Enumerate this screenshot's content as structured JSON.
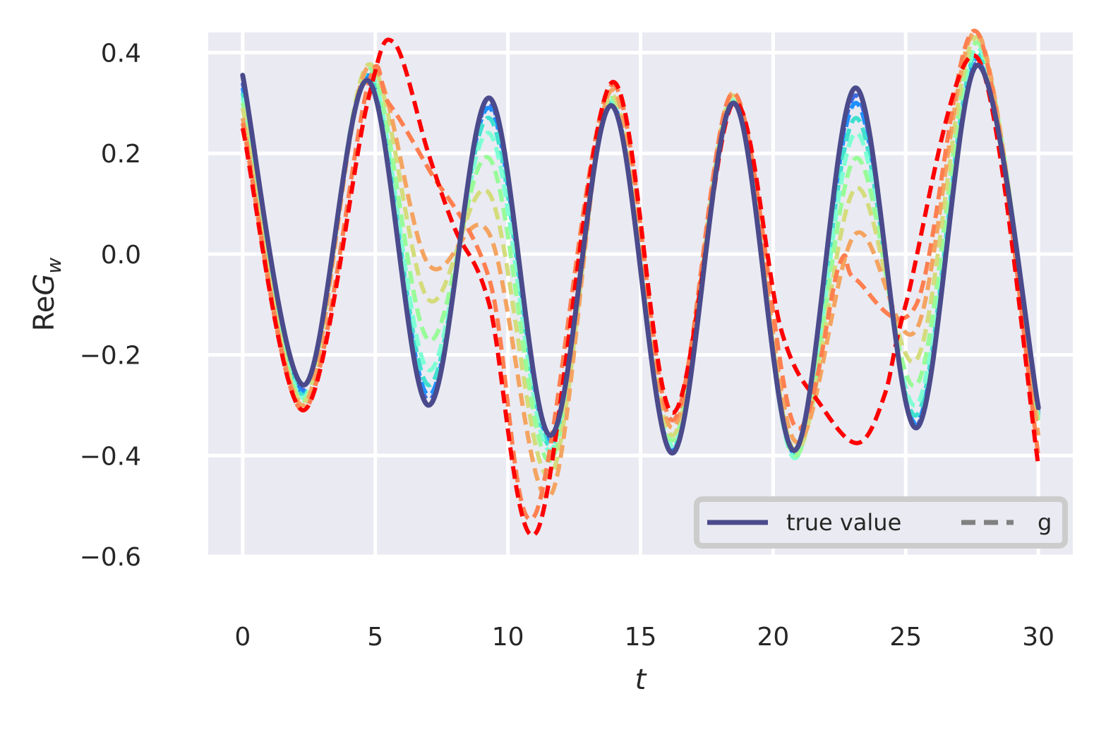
{
  "chart_data": {
    "type": "line",
    "xlabel": "t",
    "ylabel_prefix": "Re",
    "ylabel_symbol": "G",
    "ylabel_subscript": "w",
    "xlim": [
      -1.3,
      31.3
    ],
    "ylim": [
      -0.6,
      0.44
    ],
    "xticks": [
      0,
      5,
      10,
      15,
      20,
      25,
      30
    ],
    "yticks": [
      0.4,
      0.2,
      0.0,
      -0.2,
      -0.4,
      -0.6
    ],
    "xtick_labels": [
      "0",
      "5",
      "10",
      "15",
      "20",
      "25",
      "30"
    ],
    "ytick_labels": [
      "0.4",
      "0.2",
      "0.0",
      "−0.2",
      "−0.4",
      "−0.6"
    ],
    "grid": true,
    "background": "#eaeaf2",
    "grid_color": "#ffffff",
    "legend": {
      "placement": "lower-right",
      "columns": 2,
      "entries": [
        {
          "label": "true value",
          "style": "solid",
          "color": "#4a4a8c"
        },
        {
          "label": "g",
          "style": "dashed",
          "color": "#808080"
        }
      ]
    },
    "true_value": {
      "label": "true value",
      "color": "#4a4a8c",
      "points": [
        [
          0.0,
          0.355
        ],
        [
          2.3,
          -0.26
        ],
        [
          4.7,
          0.345
        ],
        [
          7.0,
          -0.3
        ],
        [
          9.3,
          0.31
        ],
        [
          11.6,
          -0.36
        ],
        [
          13.9,
          0.295
        ],
        [
          16.2,
          -0.395
        ],
        [
          18.5,
          0.3
        ],
        [
          20.8,
          -0.39
        ],
        [
          23.1,
          0.33
        ],
        [
          25.4,
          -0.345
        ],
        [
          27.7,
          0.375
        ],
        [
          30.0,
          -0.305
        ]
      ]
    },
    "dashed_series": [
      {
        "color": "#4169e1",
        "points": [
          [
            0.0,
            0.34
          ],
          [
            2.3,
            -0.27
          ],
          [
            4.7,
            0.35
          ],
          [
            7.0,
            -0.29
          ],
          [
            9.3,
            0.3
          ],
          [
            11.6,
            -0.36
          ],
          [
            13.9,
            0.295
          ],
          [
            16.2,
            -0.39
          ],
          [
            18.5,
            0.3
          ],
          [
            20.8,
            -0.39
          ],
          [
            23.1,
            0.315
          ],
          [
            25.4,
            -0.34
          ],
          [
            27.7,
            0.38
          ],
          [
            30.0,
            -0.31
          ]
        ]
      },
      {
        "color": "#1e90ff",
        "points": [
          [
            0.0,
            0.33
          ],
          [
            2.3,
            -0.275
          ],
          [
            4.7,
            0.355
          ],
          [
            7.0,
            -0.28
          ],
          [
            9.3,
            0.29
          ],
          [
            11.6,
            -0.37
          ],
          [
            13.9,
            0.3
          ],
          [
            16.2,
            -0.39
          ],
          [
            18.5,
            0.3
          ],
          [
            20.8,
            -0.395
          ],
          [
            23.1,
            0.3
          ],
          [
            25.4,
            -0.335
          ],
          [
            27.7,
            0.39
          ],
          [
            30.0,
            -0.315
          ]
        ]
      },
      {
        "color": "#40e0d0",
        "points": [
          [
            0.0,
            0.32
          ],
          [
            2.3,
            -0.28
          ],
          [
            4.7,
            0.36
          ],
          [
            7.0,
            -0.26
          ],
          [
            9.3,
            0.27
          ],
          [
            11.6,
            -0.38
          ],
          [
            13.9,
            0.3
          ],
          [
            16.2,
            -0.385
          ],
          [
            18.5,
            0.3
          ],
          [
            20.8,
            -0.4
          ],
          [
            23.1,
            0.27
          ],
          [
            25.4,
            -0.32
          ],
          [
            27.7,
            0.4
          ],
          [
            30.0,
            -0.32
          ]
        ]
      },
      {
        "color": "#7fffd4",
        "points": [
          [
            0.0,
            0.31
          ],
          [
            2.3,
            -0.285
          ],
          [
            4.7,
            0.365
          ],
          [
            7.0,
            -0.23
          ],
          [
            9.3,
            0.24
          ],
          [
            11.6,
            -0.39
          ],
          [
            13.9,
            0.305
          ],
          [
            16.2,
            -0.38
          ],
          [
            18.5,
            0.305
          ],
          [
            20.8,
            -0.405
          ],
          [
            23.1,
            0.24
          ],
          [
            25.4,
            -0.3
          ],
          [
            27.7,
            0.41
          ],
          [
            30.0,
            -0.325
          ]
        ]
      },
      {
        "color": "#98fb98",
        "points": [
          [
            0.0,
            0.3
          ],
          [
            2.3,
            -0.29
          ],
          [
            4.7,
            0.37
          ],
          [
            7.0,
            -0.17
          ],
          [
            9.3,
            0.19
          ],
          [
            11.6,
            -0.41
          ],
          [
            13.9,
            0.31
          ],
          [
            16.2,
            -0.37
          ],
          [
            18.5,
            0.31
          ],
          [
            20.8,
            -0.4
          ],
          [
            23.1,
            0.19
          ],
          [
            25.4,
            -0.26
          ],
          [
            27.7,
            0.42
          ],
          [
            30.0,
            -0.33
          ]
        ]
      },
      {
        "color": "#d4dc7c",
        "points": [
          [
            0.0,
            0.29
          ],
          [
            2.3,
            -0.295
          ],
          [
            4.7,
            0.375
          ],
          [
            7.0,
            -0.09
          ],
          [
            9.3,
            0.12
          ],
          [
            11.6,
            -0.44
          ],
          [
            13.9,
            0.315
          ],
          [
            16.2,
            -0.36
          ],
          [
            18.5,
            0.315
          ],
          [
            20.8,
            -0.39
          ],
          [
            23.1,
            0.13
          ],
          [
            25.4,
            -0.21
          ],
          [
            27.7,
            0.43
          ],
          [
            30.0,
            -0.34
          ]
        ]
      },
      {
        "color": "#f4a460",
        "points": [
          [
            0.0,
            0.27
          ],
          [
            2.3,
            -0.3
          ],
          [
            4.7,
            0.37
          ],
          [
            7.0,
            -0.02
          ],
          [
            9.3,
            0.04
          ],
          [
            11.6,
            -0.48
          ],
          [
            13.9,
            0.325
          ],
          [
            16.2,
            -0.345
          ],
          [
            18.5,
            0.32
          ],
          [
            20.8,
            -0.37
          ],
          [
            23.1,
            0.04
          ],
          [
            25.4,
            -0.15
          ],
          [
            27.7,
            0.44
          ],
          [
            30.0,
            -0.36
          ]
        ]
      },
      {
        "color": "#ff7f50",
        "points": [
          [
            0.0,
            0.26
          ],
          [
            2.3,
            -0.31
          ],
          [
            4.7,
            0.33
          ],
          [
            5.5,
            0.3
          ],
          [
            7.0,
            0.17
          ],
          [
            9.3,
            -0.05
          ],
          [
            11.0,
            -0.52
          ],
          [
            13.9,
            0.335
          ],
          [
            16.2,
            -0.33
          ],
          [
            18.5,
            0.32
          ],
          [
            20.8,
            -0.34
          ],
          [
            22.5,
            -0.02
          ],
          [
            23.1,
            -0.05
          ],
          [
            25.4,
            -0.1
          ],
          [
            27.7,
            0.44
          ],
          [
            30.0,
            -0.4
          ]
        ]
      },
      {
        "color": "#ff0000",
        "points": [
          [
            0.0,
            0.25
          ],
          [
            2.3,
            -0.31
          ],
          [
            4.7,
            0.3
          ],
          [
            5.7,
            0.42
          ],
          [
            7.0,
            0.2
          ],
          [
            8.0,
            0.05
          ],
          [
            9.3,
            -0.1
          ],
          [
            11.1,
            -0.55
          ],
          [
            13.9,
            0.34
          ],
          [
            16.2,
            -0.315
          ],
          [
            18.5,
            0.3
          ],
          [
            20.3,
            -0.15
          ],
          [
            21.8,
            -0.3
          ],
          [
            23.2,
            -0.375
          ],
          [
            24.2,
            -0.28
          ],
          [
            25.0,
            -0.1
          ],
          [
            27.7,
            0.39
          ],
          [
            30.0,
            -0.42
          ]
        ]
      }
    ]
  }
}
